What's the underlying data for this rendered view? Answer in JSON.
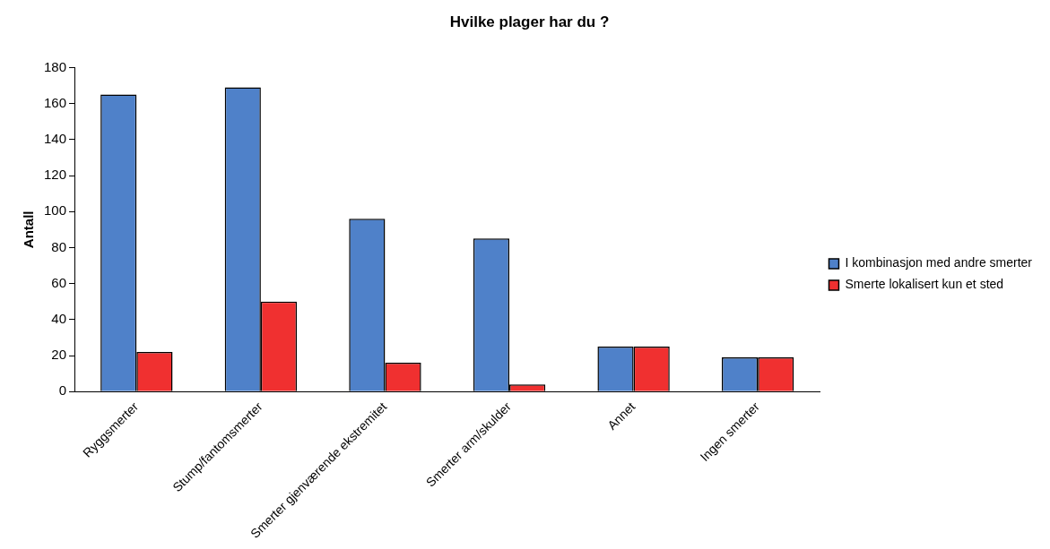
{
  "chart_data": {
    "type": "bar",
    "title": "Hvilke plager har du ?",
    "ylabel": "Antall",
    "categories": [
      "Ryggsmerter",
      "Stump/fantomsmerter",
      "Smerter gjenværende ekstremitet",
      "Smerter arm/skulder",
      "Annet",
      "Ingen smerter"
    ],
    "series": [
      {
        "name": "I kombinasjon med andre smerter",
        "color": "#4f81c9",
        "values": [
          165,
          169,
          96,
          85,
          25,
          19
        ]
      },
      {
        "name": "Smerte lokalisert kun et sted",
        "color": "#f03030",
        "values": [
          22,
          50,
          16,
          4,
          25,
          19
        ]
      }
    ],
    "ylim": [
      0,
      180
    ],
    "yticks": [
      0,
      20,
      40,
      60,
      80,
      100,
      120,
      140,
      160,
      180
    ],
    "grid": false,
    "legend": "right"
  }
}
